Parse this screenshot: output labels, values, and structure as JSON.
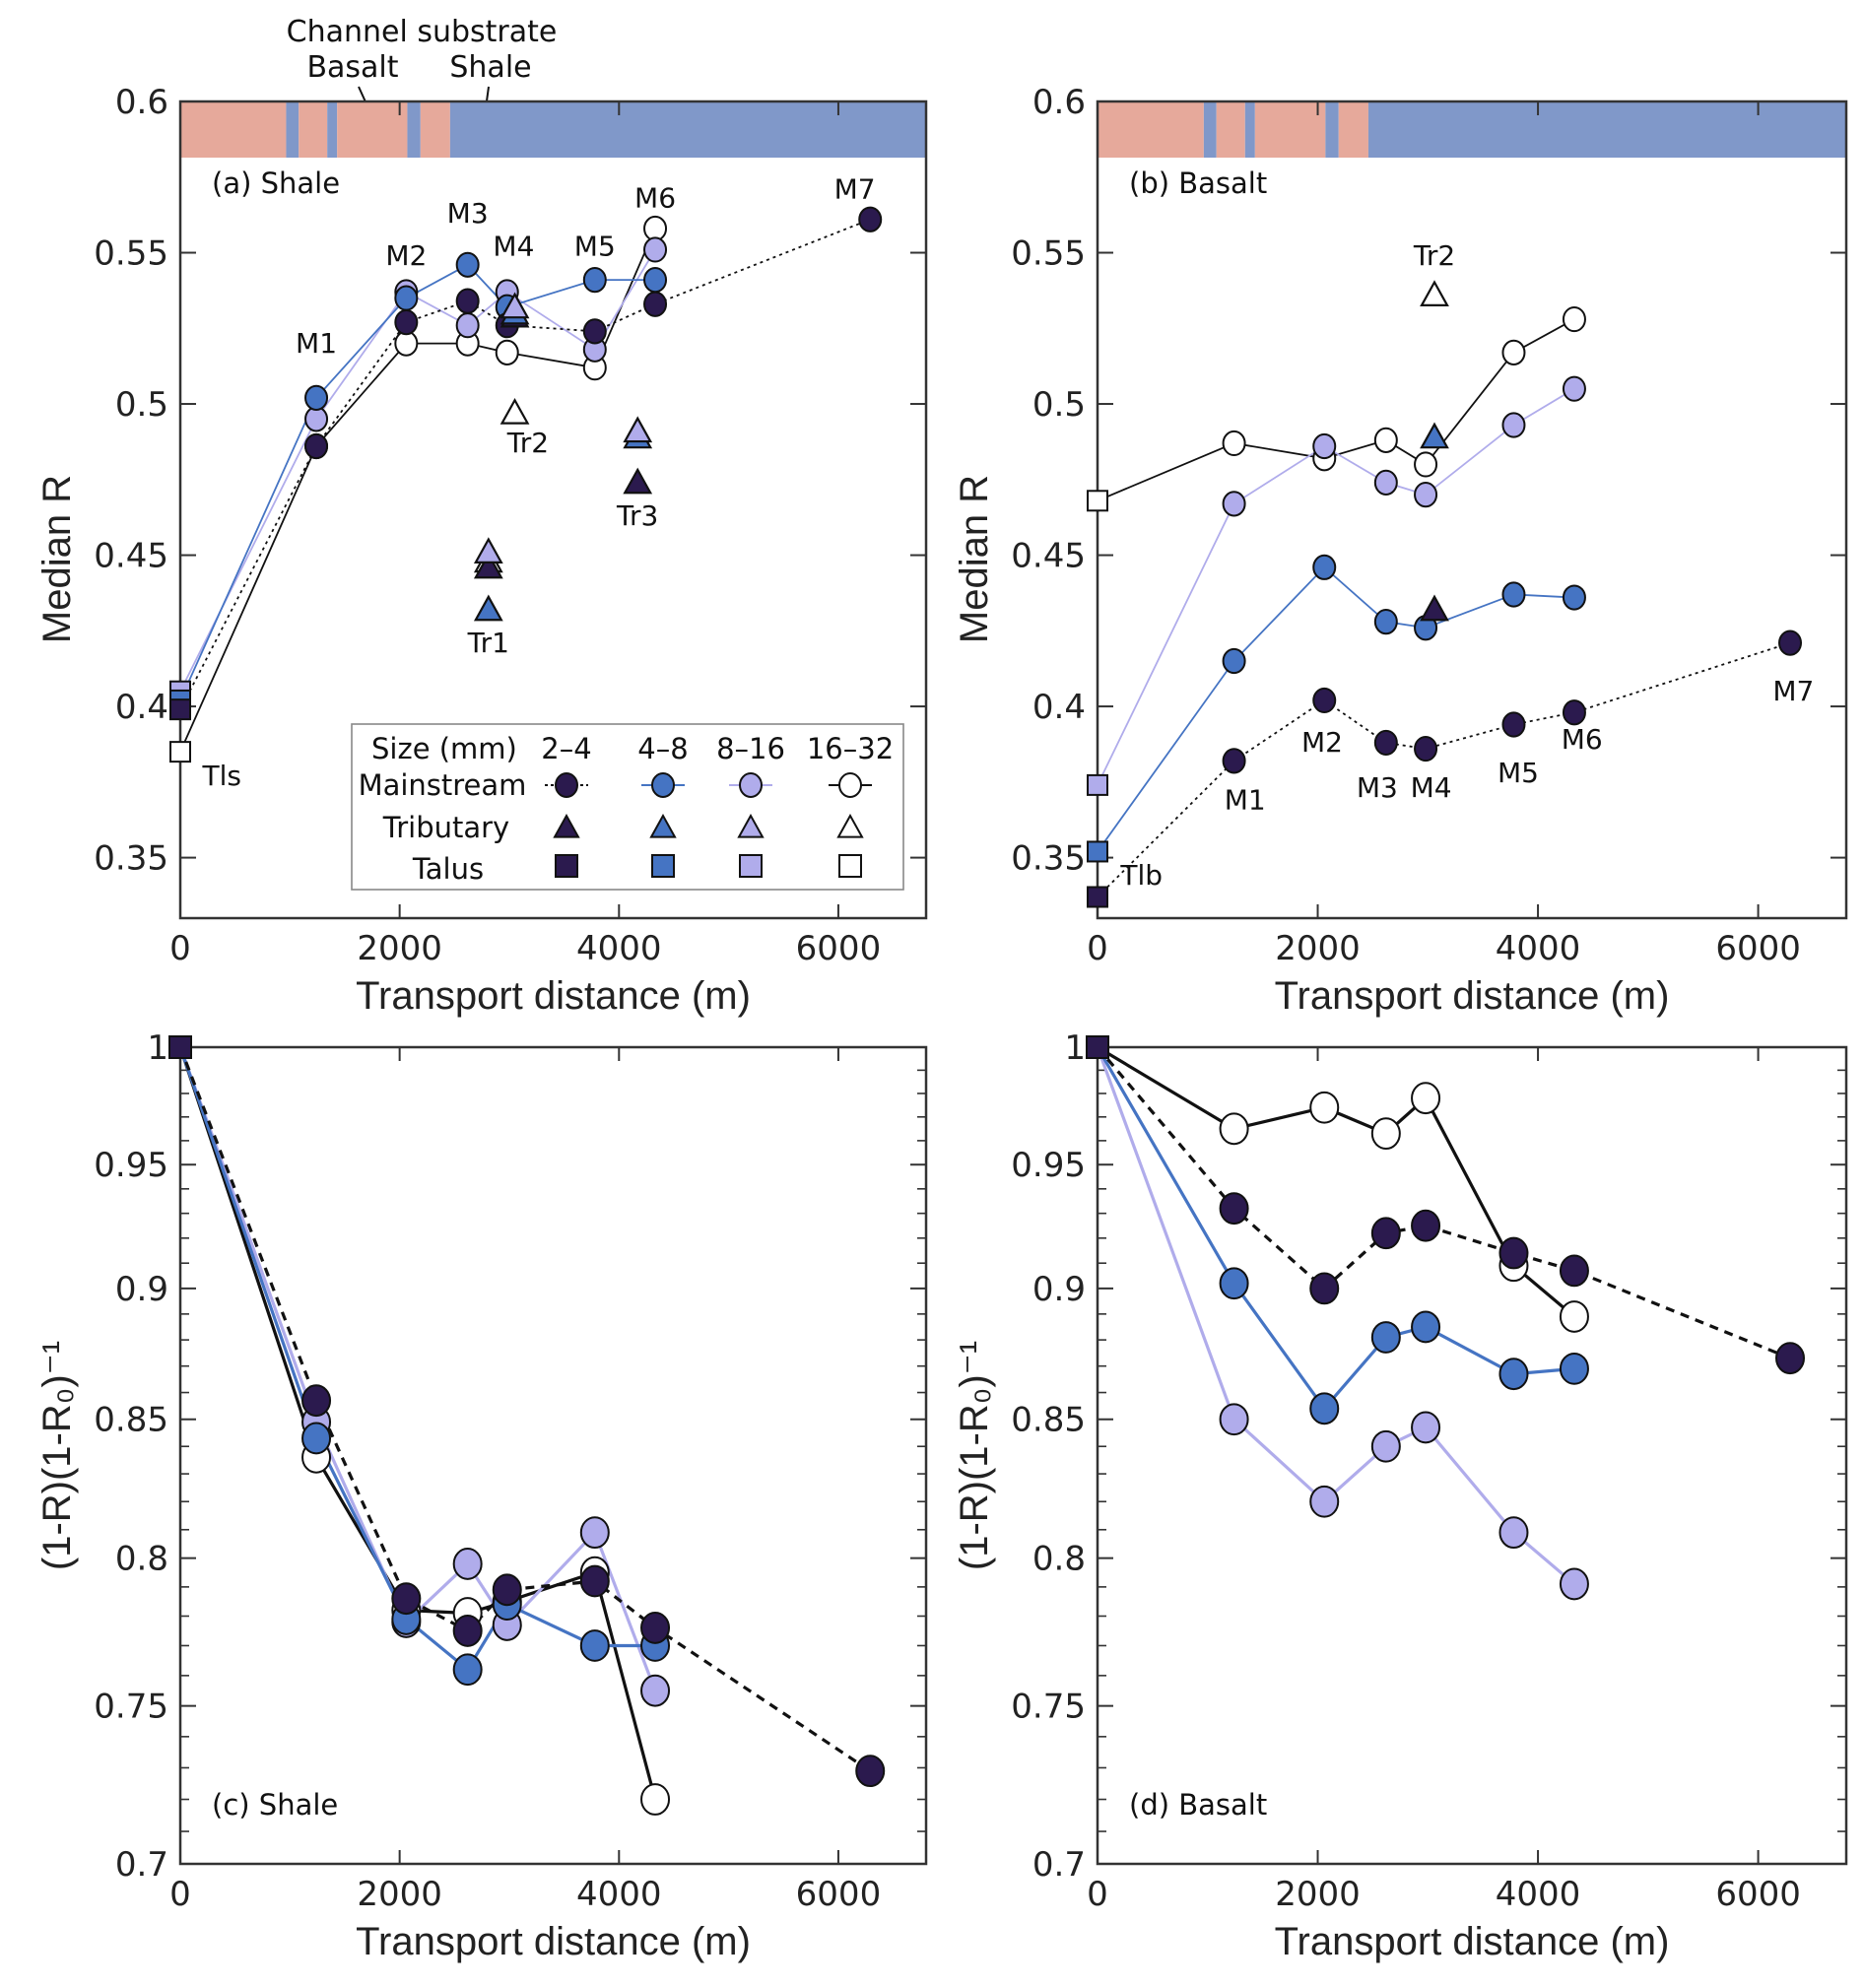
{
  "figure": {
    "substrate_title": "Channel substrate",
    "substrate_basalt_label": "Basalt",
    "substrate_shale_label": "Shale"
  },
  "colors": {
    "size_2_4": "#2b1a4e",
    "size_4_8": "#4574c3",
    "size_8_16": "#b0aceb",
    "size_16_32": "#ffffff",
    "basalt": "#e6a99b",
    "shale": "#8098c9",
    "axis": "#333333"
  },
  "legend": {
    "header": "Size (mm)",
    "sizes": [
      "2–4",
      "4–8",
      "8–16",
      "16–32"
    ],
    "rows": [
      "Mainstream",
      "Tributary",
      "Talus"
    ]
  },
  "chart_data": [
    {
      "id": "a",
      "type": "line",
      "panel_label": "(a) Shale",
      "title": "",
      "xlabel": "Transport distance (m)",
      "ylabel": "Median R",
      "xlim": [
        0,
        6800
      ],
      "ylim": [
        0.33,
        0.6
      ],
      "yscale": "linear",
      "xticks": [
        0,
        2000,
        4000,
        6000
      ],
      "xtick_labels": [
        "0",
        "2000",
        "4000",
        "6000"
      ],
      "yticks": [
        0.35,
        0.4,
        0.45,
        0.5,
        0.55,
        0.6
      ],
      "ytick_labels": [
        "0.35",
        "0.4",
        "0.45",
        "0.5",
        "0.55",
        "0.6"
      ],
      "grid": false,
      "legend": "bottom-right",
      "substrate_bar": [
        {
          "type": "basalt",
          "from": 0,
          "to": 965
        },
        {
          "type": "shale",
          "from": 965,
          "to": 1080
        },
        {
          "type": "basalt",
          "from": 1080,
          "to": 1340
        },
        {
          "type": "shale",
          "from": 1340,
          "to": 1430
        },
        {
          "type": "basalt",
          "from": 1430,
          "to": 2070
        },
        {
          "type": "shale",
          "from": 2070,
          "to": 2190
        },
        {
          "type": "basalt",
          "from": 2190,
          "to": 2460
        },
        {
          "type": "shale",
          "from": 2460,
          "to": 6800
        }
      ],
      "x": [
        0,
        1240,
        2060,
        2620,
        2980,
        3780,
        4330,
        6290
      ],
      "series": [
        {
          "name": "2–4 mm mainstream",
          "size": "size_2_4",
          "line": "dotted",
          "values": [
            0.399,
            0.486,
            0.527,
            0.534,
            0.526,
            0.524,
            0.533,
            0.561
          ]
        },
        {
          "name": "4–8 mm mainstream",
          "size": "size_4_8",
          "line": "solid",
          "values": [
            0.402,
            0.502,
            0.535,
            0.546,
            0.532,
            0.541,
            0.541,
            null
          ]
        },
        {
          "name": "8–16 mm mainstream",
          "size": "size_8_16",
          "line": "solid",
          "values": [
            0.405,
            0.495,
            0.537,
            0.526,
            0.537,
            0.518,
            0.551,
            null
          ]
        },
        {
          "name": "16–32 mm mainstream",
          "size": "size_16_32",
          "line": "solid",
          "values": [
            0.385,
            0.486,
            0.52,
            0.52,
            0.517,
            0.512,
            0.558,
            null
          ]
        }
      ],
      "tributaries": [
        {
          "name": "Tr1",
          "x": 2810,
          "values": {
            "size_2_4": 0.446,
            "size_4_8": 0.432,
            "size_8_16": 0.451,
            "size_16_32": 0.448
          }
        },
        {
          "name": "Tr2",
          "x": 3050,
          "values": {
            "size_2_4": 0.529,
            "size_4_8": 0.53,
            "size_8_16": 0.532,
            "size_16_32": 0.497
          }
        },
        {
          "name": "Tr3",
          "x": 4170,
          "values": {
            "size_2_4": 0.474,
            "size_4_8": 0.489,
            "size_8_16": 0.491
          }
        }
      ],
      "annotations": [
        {
          "text": "M1",
          "x": 1240,
          "y": 0.517
        },
        {
          "text": "M2",
          "x": 2060,
          "y": 0.546
        },
        {
          "text": "M3",
          "x": 2620,
          "y": 0.56
        },
        {
          "text": "M4",
          "x": 3040,
          "y": 0.549
        },
        {
          "text": "M5",
          "x": 3780,
          "y": 0.549
        },
        {
          "text": "M6",
          "x": 4330,
          "y": 0.565
        },
        {
          "text": "M7",
          "x": 6150,
          "y": 0.568
        },
        {
          "text": "Tr2",
          "x": 3170,
          "y": 0.484
        },
        {
          "text": "Tr3",
          "x": 4170,
          "y": 0.46
        },
        {
          "text": "Tr1",
          "x": 2810,
          "y": 0.418
        },
        {
          "text": "Tls",
          "x": 380,
          "y": 0.374
        }
      ]
    },
    {
      "id": "b",
      "type": "line",
      "panel_label": "(b) Basalt",
      "title": "",
      "xlabel": "Transport distance (m)",
      "ylabel": "Median R",
      "xlim": [
        0,
        6800
      ],
      "ylim": [
        0.33,
        0.6
      ],
      "yscale": "linear",
      "xticks": [
        0,
        2000,
        4000,
        6000
      ],
      "xtick_labels": [
        "0",
        "2000",
        "4000",
        "6000"
      ],
      "yticks": [
        0.35,
        0.4,
        0.45,
        0.5,
        0.55,
        0.6
      ],
      "ytick_labels": [
        "0.35",
        "0.4",
        "0.45",
        "0.5",
        "0.55",
        "0.6"
      ],
      "grid": false,
      "substrate_bar": "same as (a)",
      "x": [
        0,
        1240,
        2060,
        2620,
        2980,
        3780,
        4330,
        6290
      ],
      "series": [
        {
          "name": "2–4 mm mainstream",
          "size": "size_2_4",
          "line": "dotted",
          "values": [
            0.337,
            0.382,
            0.402,
            0.388,
            0.386,
            0.394,
            0.398,
            0.421
          ]
        },
        {
          "name": "4–8 mm mainstream",
          "size": "size_4_8",
          "line": "solid",
          "values": [
            0.352,
            0.415,
            0.446,
            0.428,
            0.426,
            0.437,
            0.436,
            null
          ]
        },
        {
          "name": "8–16 mm mainstream",
          "size": "size_8_16",
          "line": "solid",
          "values": [
            0.374,
            0.467,
            0.486,
            0.474,
            0.47,
            0.493,
            0.505,
            null
          ]
        },
        {
          "name": "16–32 mm mainstream",
          "size": "size_16_32",
          "line": "solid",
          "values": [
            0.468,
            0.487,
            0.482,
            0.488,
            0.48,
            0.517,
            0.528,
            null
          ]
        }
      ],
      "tributaries": [
        {
          "name": "Tr2",
          "x": 3060,
          "values": {
            "size_2_4": 0.432,
            "size_4_8": 0.489,
            "size_16_32": 0.536
          }
        }
      ],
      "annotations": [
        {
          "text": "Tr2",
          "x": 3060,
          "y": 0.546
        },
        {
          "text": "M1",
          "x": 1340,
          "y": 0.366
        },
        {
          "text": "M2",
          "x": 2040,
          "y": 0.385
        },
        {
          "text": "M3",
          "x": 2540,
          "y": 0.37
        },
        {
          "text": "M4",
          "x": 3030,
          "y": 0.37
        },
        {
          "text": "M5",
          "x": 3820,
          "y": 0.375
        },
        {
          "text": "M6",
          "x": 4400,
          "y": 0.386
        },
        {
          "text": "M7",
          "x": 6320,
          "y": 0.402
        },
        {
          "text": "Tlb",
          "x": 400,
          "y": 0.341
        }
      ]
    },
    {
      "id": "c",
      "type": "line",
      "panel_label": "(c) Shale",
      "title": "",
      "xlabel": "Transport distance (m)",
      "ylabel": "(1-R)(1-R₀)⁻¹",
      "xlim": [
        0,
        6800
      ],
      "ylim": [
        0.7,
        1.0
      ],
      "yscale": "log",
      "xticks": [
        0,
        2000,
        4000,
        6000
      ],
      "xtick_labels": [
        "0",
        "2000",
        "4000",
        "6000"
      ],
      "yticks": [
        0.7,
        0.75,
        0.8,
        0.85,
        0.9,
        0.95,
        1.0
      ],
      "ytick_labels": [
        "0.7",
        "0.75",
        "0.8",
        "0.85",
        "0.9",
        "0.95",
        "1"
      ],
      "grid": false,
      "x": [
        0,
        1240,
        2060,
        2620,
        2980,
        3780,
        4330,
        6290
      ],
      "series": [
        {
          "name": "2–4 mm",
          "size": "size_2_4",
          "line": "dashed",
          "values": [
            1.0,
            0.857,
            0.786,
            0.775,
            0.789,
            0.792,
            0.776,
            0.729
          ]
        },
        {
          "name": "4–8 mm",
          "size": "size_4_8",
          "line": "solid",
          "values": [
            1.0,
            0.843,
            0.779,
            0.762,
            0.784,
            0.77,
            0.77,
            null
          ]
        },
        {
          "name": "8–16 mm",
          "size": "size_8_16",
          "line": "solid",
          "values": [
            1.0,
            0.849,
            0.778,
            0.798,
            0.777,
            0.809,
            0.755,
            null
          ]
        },
        {
          "name": "16–32 mm",
          "size": "size_16_32",
          "line": "solid",
          "values": [
            1.0,
            0.836,
            0.782,
            0.781,
            0.785,
            0.795,
            0.72,
            null
          ]
        }
      ]
    },
    {
      "id": "d",
      "type": "line",
      "panel_label": "(d) Basalt",
      "title": "",
      "xlabel": "Transport distance (m)",
      "ylabel": "(1-R)(1-R₀)⁻¹",
      "xlim": [
        0,
        6800
      ],
      "ylim": [
        0.7,
        1.0
      ],
      "yscale": "log",
      "xticks": [
        0,
        2000,
        4000,
        6000
      ],
      "xtick_labels": [
        "0",
        "2000",
        "4000",
        "6000"
      ],
      "yticks": [
        0.7,
        0.75,
        0.8,
        0.85,
        0.9,
        0.95,
        1.0
      ],
      "ytick_labels": [
        "0.7",
        "0.75",
        "0.8",
        "0.85",
        "0.9",
        "0.95",
        "1"
      ],
      "grid": false,
      "x": [
        0,
        1240,
        2060,
        2620,
        2980,
        3780,
        4330,
        6290
      ],
      "series": [
        {
          "name": "2–4 mm",
          "size": "size_2_4",
          "line": "dashed",
          "values": [
            1.0,
            0.932,
            0.9,
            0.922,
            0.925,
            0.914,
            0.907,
            0.873
          ]
        },
        {
          "name": "4–8 mm",
          "size": "size_4_8",
          "line": "solid",
          "values": [
            1.0,
            0.902,
            0.854,
            0.881,
            0.885,
            0.867,
            0.869,
            null
          ]
        },
        {
          "name": "8–16 mm",
          "size": "size_8_16",
          "line": "solid",
          "values": [
            1.0,
            0.85,
            0.82,
            0.84,
            0.847,
            0.809,
            0.791,
            null
          ]
        },
        {
          "name": "16–32 mm",
          "size": "size_16_32",
          "line": "solid",
          "values": [
            1.0,
            0.965,
            0.974,
            0.963,
            0.978,
            0.909,
            0.889,
            null
          ]
        }
      ]
    }
  ]
}
